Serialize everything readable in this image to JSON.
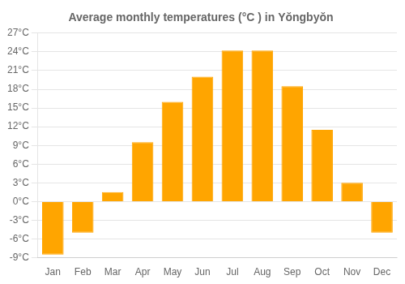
{
  "chart_data": {
    "type": "bar",
    "title": "Average monthly temperatures (°C ) in Yŏngbyŏn",
    "categories": [
      "Jan",
      "Feb",
      "Mar",
      "Apr",
      "May",
      "Jun",
      "Jul",
      "Aug",
      "Sep",
      "Oct",
      "Nov",
      "Dec"
    ],
    "values": [
      -8.5,
      -5.0,
      1.5,
      9.5,
      16.0,
      20.0,
      24.2,
      24.2,
      18.5,
      11.5,
      3.0,
      -5.0
    ],
    "color": "#FFA500",
    "ylim": [
      -9,
      27
    ],
    "yticks": [
      {
        "value": -9,
        "label": "-9°C"
      },
      {
        "value": -6,
        "label": "-6°C"
      },
      {
        "value": -3,
        "label": "-3°C"
      },
      {
        "value": 0,
        "label": "0°C"
      },
      {
        "value": 3,
        "label": "3°C"
      },
      {
        "value": 6,
        "label": "6°C"
      },
      {
        "value": 9,
        "label": "9°C"
      },
      {
        "value": 12,
        "label": "12°C"
      },
      {
        "value": 15,
        "label": "15°C"
      },
      {
        "value": 18,
        "label": "18°C"
      },
      {
        "value": 21,
        "label": "21°C"
      },
      {
        "value": 24,
        "label": "24°C"
      },
      {
        "value": 27,
        "label": "27°C"
      }
    ],
    "grid": true
  }
}
